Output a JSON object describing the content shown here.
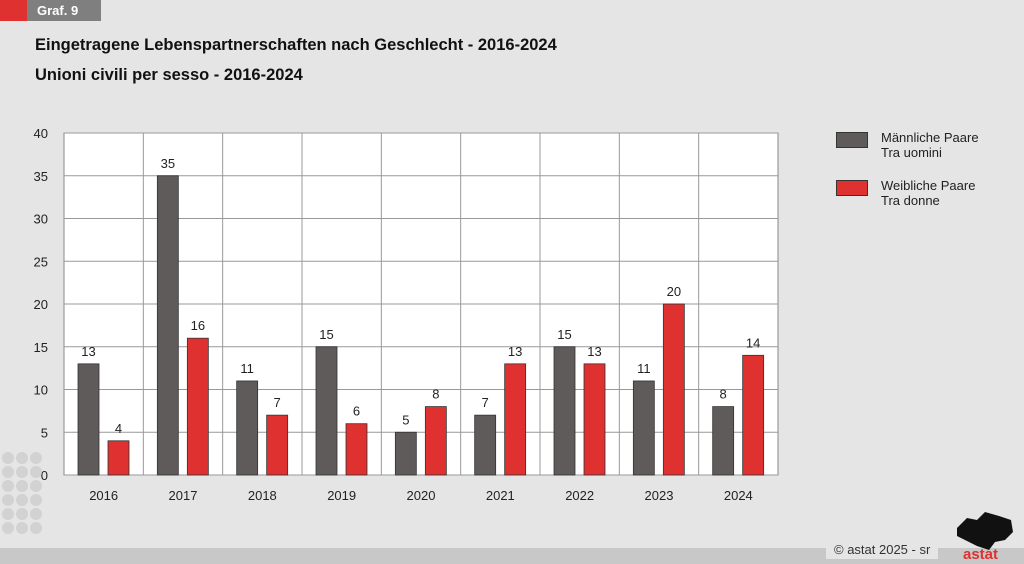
{
  "badge": "Graf. 9",
  "chart_data": {
    "type": "bar",
    "title": "Eingetragene Lebenspartnerschaften nach Geschlecht - 2016-2024",
    "subtitle": "Unioni civili per sesso - 2016-2024",
    "categories": [
      "2016",
      "2017",
      "2018",
      "2019",
      "2020",
      "2021",
      "2022",
      "2023",
      "2024"
    ],
    "series": [
      {
        "name": "Männliche Paare",
        "name2": "Tra uomini",
        "color": "#5f5b5b",
        "values": [
          13,
          35,
          11,
          15,
          5,
          7,
          15,
          11,
          8
        ]
      },
      {
        "name": "Weibliche Paare",
        "name2": "Tra donne",
        "color": "#e03131",
        "values": [
          4,
          16,
          7,
          6,
          8,
          13,
          13,
          20,
          14
        ]
      }
    ],
    "ylim": [
      0,
      40
    ],
    "yticks": [
      0,
      5,
      10,
      15,
      20,
      25,
      30,
      35,
      40
    ],
    "grid": true,
    "legend": "right"
  },
  "footer": {
    "copyright": "© astat 2025 - sr",
    "logo": "astat"
  }
}
